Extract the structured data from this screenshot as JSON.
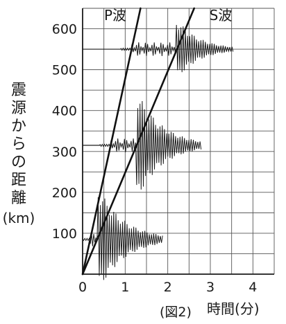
{
  "chart_data": {
    "type": "line",
    "title": "",
    "xlabel": "時間(分)",
    "ylabel_chars": [
      "震",
      "源",
      "か",
      "ら",
      "の",
      "距",
      "離"
    ],
    "ylabel_unit": "(km)",
    "caption": "(図2)",
    "xlim": [
      0,
      4.5
    ],
    "ylim": [
      0,
      650
    ],
    "x_ticks": [
      "0",
      "1",
      "2",
      "3",
      "4"
    ],
    "y_ticks": [
      "100",
      "200",
      "300",
      "400",
      "500",
      "600"
    ],
    "x_tick_values": [
      0,
      1,
      2,
      3,
      4
    ],
    "y_tick_values": [
      100,
      200,
      300,
      400,
      500,
      600
    ],
    "grid": true,
    "series": [
      {
        "name": "P波",
        "x": [
          0,
          1.36
        ],
        "y": [
          0,
          650
        ]
      },
      {
        "name": "S波",
        "x": [
          0,
          2.62
        ],
        "y": [
          0,
          650
        ]
      }
    ],
    "seismograms": [
      {
        "distance": 550,
        "p_arrival": 1.15,
        "s_arrival": 2.2,
        "end": 3.55,
        "amplitude": 45
      },
      {
        "distance": 315,
        "p_arrival": 0.66,
        "s_arrival": 1.27,
        "end": 2.8,
        "amplitude": 80
      },
      {
        "distance": 85,
        "p_arrival": 0.18,
        "s_arrival": 0.34,
        "end": 1.9,
        "amplitude": 80
      }
    ]
  }
}
